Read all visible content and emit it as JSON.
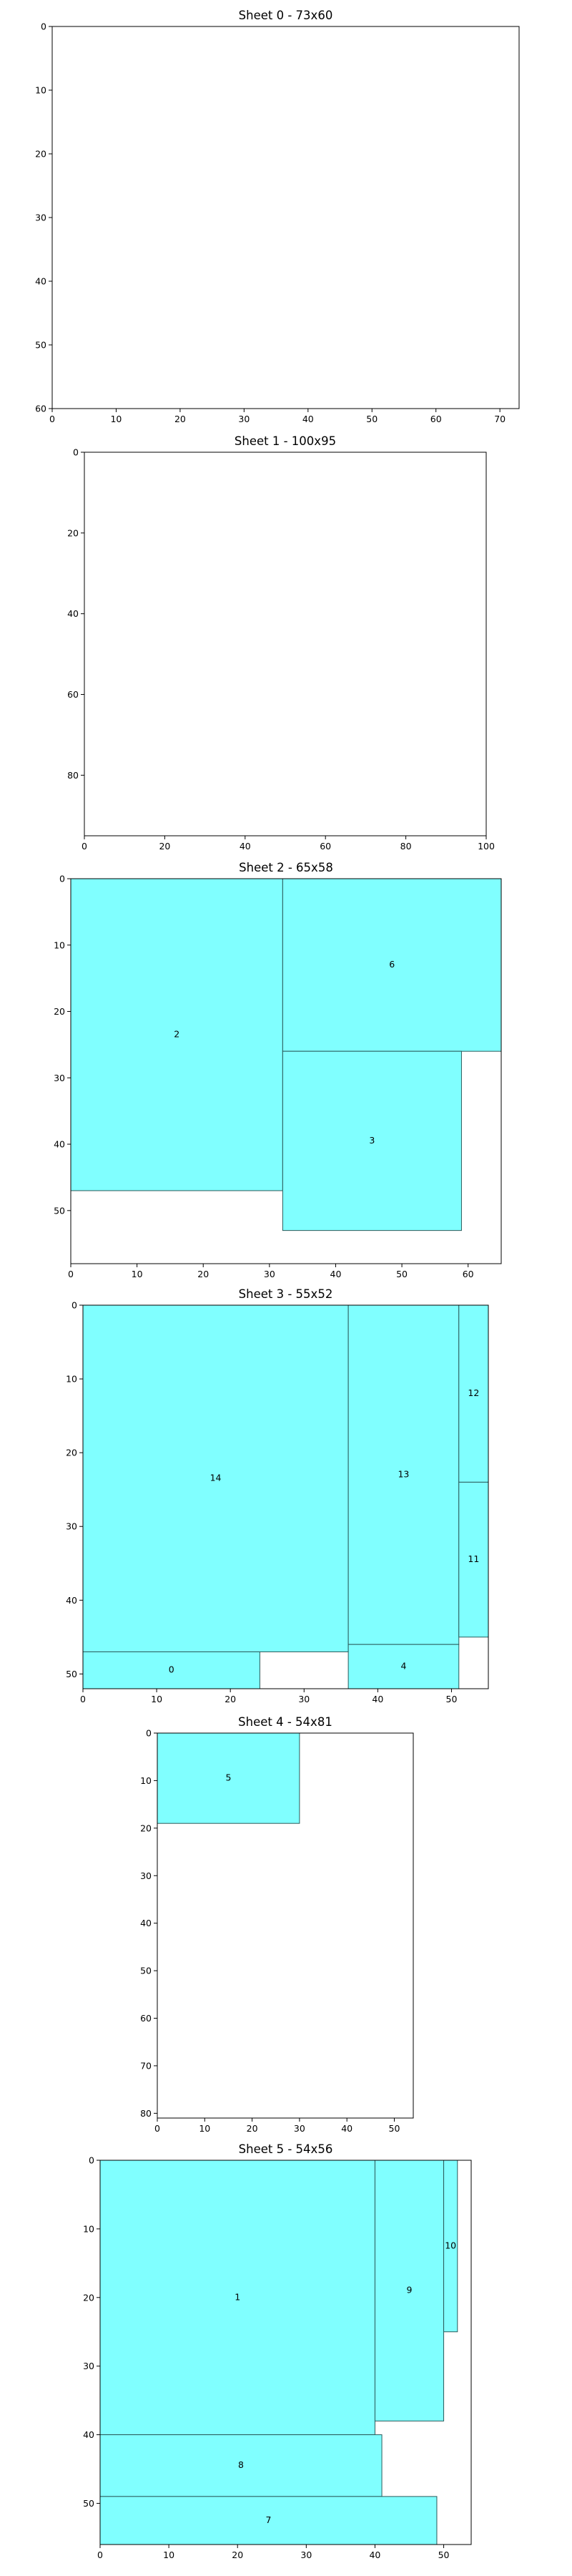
{
  "chart_data": [
    {
      "type": "diagram",
      "title": "Sheet 0 - 73x60",
      "width": 73,
      "height": 60,
      "xticks": [
        0,
        10,
        20,
        30,
        40,
        50,
        60,
        70
      ],
      "yticks": [
        0,
        10,
        20,
        30,
        40,
        50,
        60
      ],
      "pieces": []
    },
    {
      "type": "diagram",
      "title": "Sheet 1 - 100x95",
      "width": 100,
      "height": 95,
      "xticks": [
        0,
        20,
        40,
        60,
        80,
        100
      ],
      "yticks": [
        0,
        20,
        40,
        60,
        80
      ],
      "pieces": []
    },
    {
      "type": "diagram",
      "title": "Sheet 2 - 65x58",
      "width": 65,
      "height": 58,
      "xticks": [
        0,
        10,
        20,
        30,
        40,
        50,
        60
      ],
      "yticks": [
        0,
        10,
        20,
        30,
        40,
        50
      ],
      "pieces": [
        {
          "id": "2",
          "x": 0,
          "y": 0,
          "w": 32,
          "h": 47
        },
        {
          "id": "6",
          "x": 32,
          "y": 0,
          "w": 33,
          "h": 26
        },
        {
          "id": "3",
          "x": 32,
          "y": 26,
          "w": 27,
          "h": 27
        }
      ]
    },
    {
      "type": "diagram",
      "title": "Sheet 3 - 55x52",
      "width": 55,
      "height": 52,
      "xticks": [
        0,
        10,
        20,
        30,
        40,
        50
      ],
      "yticks": [
        0,
        10,
        20,
        30,
        40,
        50
      ],
      "pieces": [
        {
          "id": "14",
          "x": 0,
          "y": 0,
          "w": 36,
          "h": 47
        },
        {
          "id": "0",
          "x": 0,
          "y": 47,
          "w": 24,
          "h": 5
        },
        {
          "id": "13",
          "x": 36,
          "y": 0,
          "w": 15,
          "h": 46
        },
        {
          "id": "4",
          "x": 36,
          "y": 46,
          "w": 15,
          "h": 6
        },
        {
          "id": "12",
          "x": 51,
          "y": 0,
          "w": 4,
          "h": 24
        },
        {
          "id": "11",
          "x": 51,
          "y": 24,
          "w": 4,
          "h": 21
        }
      ]
    },
    {
      "type": "diagram",
      "title": "Sheet 4 - 54x81",
      "width": 54,
      "height": 81,
      "xticks": [
        0,
        10,
        20,
        30,
        40,
        50
      ],
      "yticks": [
        0,
        10,
        20,
        30,
        40,
        50,
        60,
        70,
        80
      ],
      "pieces": [
        {
          "id": "5",
          "x": 0,
          "y": 0,
          "w": 30,
          "h": 19
        }
      ]
    },
    {
      "type": "diagram",
      "title": "Sheet 5 - 54x56",
      "width": 54,
      "height": 56,
      "xticks": [
        0,
        10,
        20,
        30,
        40,
        50
      ],
      "yticks": [
        0,
        10,
        20,
        30,
        40,
        50
      ],
      "pieces": [
        {
          "id": "1",
          "x": 0,
          "y": 0,
          "w": 40,
          "h": 40
        },
        {
          "id": "9",
          "x": 40,
          "y": 0,
          "w": 10,
          "h": 38
        },
        {
          "id": "10",
          "x": 50,
          "y": 0,
          "w": 2,
          "h": 25
        },
        {
          "id": "8",
          "x": 0,
          "y": 40,
          "w": 41,
          "h": 9
        },
        {
          "id": "7",
          "x": 0,
          "y": 49,
          "w": 49,
          "h": 7
        }
      ]
    }
  ]
}
